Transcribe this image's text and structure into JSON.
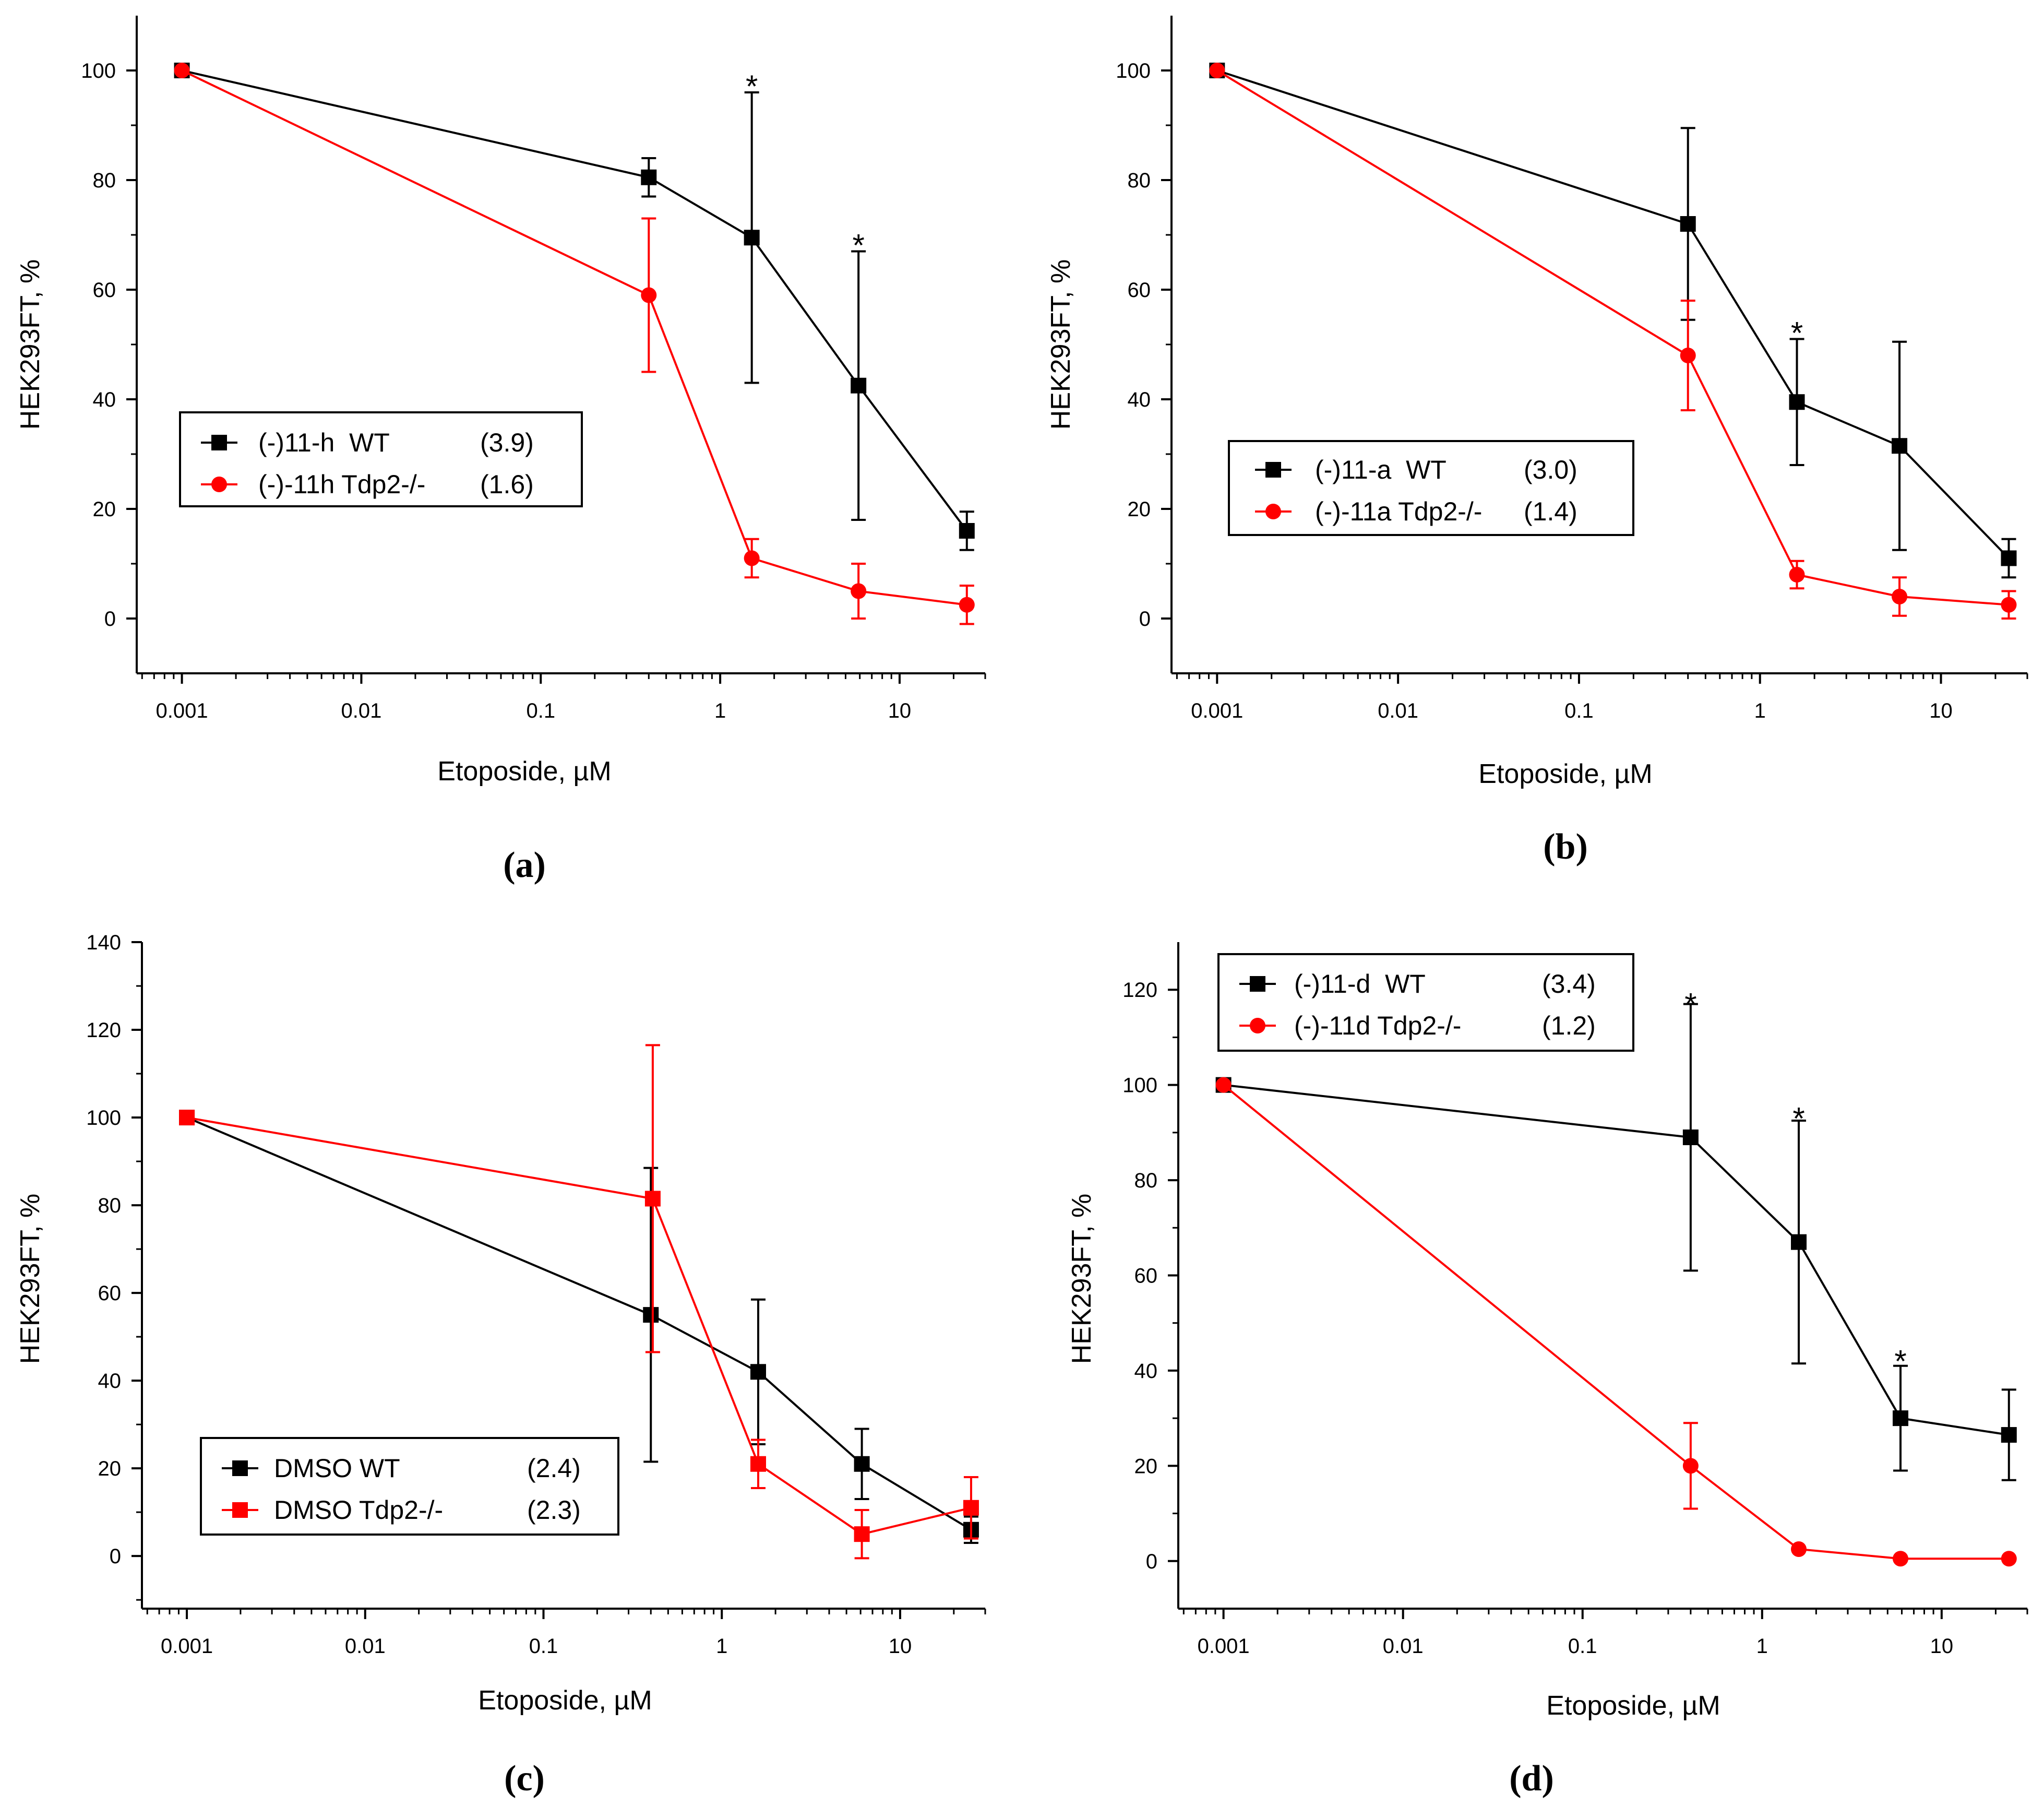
{
  "figure": {
    "panel_captions": [
      "(a)",
      "(b)",
      "(c)",
      "(d)"
    ]
  },
  "chart_data": [
    {
      "type": "line",
      "panel": "(a)",
      "xlabel": "Etoposide, µM",
      "ylabel": "HEK293FT, %",
      "xscale": "log",
      "xlim": [
        0.00056,
        30
      ],
      "ylim": [
        -10,
        110
      ],
      "xticks": [
        0.001,
        0.01,
        0.1,
        1,
        10
      ],
      "xtick_labels": [
        "0.001",
        "0.01",
        "0.1",
        "1",
        "10"
      ],
      "yticks": [
        0,
        20,
        40,
        60,
        80,
        100
      ],
      "ytick_labels": [
        "0",
        "20",
        "40",
        "60",
        "80",
        "100"
      ],
      "legend_position": "middle-left",
      "series": [
        {
          "name": "(-)11-h  WT",
          "value_label": "(3.9)",
          "color": "#000000",
          "marker": "square",
          "x": [
            0.001,
            0.4,
            1.5,
            5.9,
            23.7
          ],
          "y": [
            100,
            80.5,
            69.5,
            42.5,
            16
          ],
          "err": [
            0,
            3.5,
            26.5,
            24.5,
            3.5
          ]
        },
        {
          "name": "(-)-11h Tdp2-/-",
          "value_label": "(1.6)",
          "color": "#ff0000",
          "marker": "circle",
          "x": [
            0.001,
            0.4,
            1.5,
            5.9,
            23.7
          ],
          "y": [
            100,
            59,
            11,
            5,
            2.5
          ],
          "err": [
            0,
            14,
            3.5,
            5,
            3.5
          ]
        }
      ],
      "annotations": [
        {
          "text": "*",
          "x": 1.5,
          "y": 98
        },
        {
          "text": "*",
          "x": 5.9,
          "y": 69
        }
      ]
    },
    {
      "type": "line",
      "panel": "(b)",
      "xlabel": "Etoposide, µM",
      "ylabel": "HEK293FT, %",
      "xscale": "log",
      "xlim": [
        0.00056,
        30
      ],
      "ylim": [
        -10,
        110
      ],
      "xticks": [
        0.001,
        0.01,
        0.1,
        1,
        10
      ],
      "xtick_labels": [
        "0.001",
        "0.01",
        "0.1",
        "1",
        "10"
      ],
      "yticks": [
        0,
        20,
        40,
        60,
        80,
        100
      ],
      "ytick_labels": [
        "0",
        "20",
        "40",
        "60",
        "80",
        "100"
      ],
      "legend_position": "middle-left",
      "series": [
        {
          "name": "(-)11-a  WT",
          "value_label": "(3.0)",
          "color": "#000000",
          "marker": "square",
          "x": [
            0.001,
            0.4,
            1.6,
            5.9,
            23.7
          ],
          "y": [
            100,
            72,
            39.5,
            31.5,
            11
          ],
          "err": [
            0,
            17.5,
            11.5,
            19,
            3.5
          ]
        },
        {
          "name": "(-)-11a Tdp2-/-",
          "value_label": "(1.4)",
          "color": "#ff0000",
          "marker": "circle",
          "x": [
            0.001,
            0.4,
            1.6,
            5.9,
            23.7
          ],
          "y": [
            100,
            48,
            8,
            4,
            2.5
          ],
          "err": [
            0,
            10,
            2.5,
            3.5,
            2.5
          ]
        }
      ],
      "annotations": [
        {
          "text": "*",
          "x": 1.6,
          "y": 53
        }
      ]
    },
    {
      "type": "line",
      "panel": "(c)",
      "xlabel": "Etoposide, µM",
      "ylabel": "HEK293FT, %",
      "xscale": "log",
      "xlim": [
        0.00056,
        30
      ],
      "ylim": [
        -12,
        140
      ],
      "xticks": [
        0.001,
        0.01,
        0.1,
        1,
        10
      ],
      "xtick_labels": [
        "0.001",
        "0.01",
        "0.1",
        "1",
        "10"
      ],
      "yticks": [
        0,
        20,
        40,
        60,
        80,
        100,
        120,
        140
      ],
      "ytick_labels": [
        "0",
        "20",
        "40",
        "60",
        "80",
        "100",
        "120",
        "140"
      ],
      "legend_position": "lower-left",
      "series": [
        {
          "name": "DMSO WT",
          "value_label": "(2.4)",
          "color": "#000000",
          "marker": "square",
          "x": [
            0.001,
            0.4,
            1.6,
            6.1,
            25
          ],
          "y": [
            100,
            55,
            42,
            21,
            6
          ],
          "err": [
            0,
            33.5,
            16.5,
            8,
            3
          ]
        },
        {
          "name": "DMSO Tdp2-/-",
          "value_label": "(2.3)",
          "color": "#ff0000",
          "marker": "square",
          "x": [
            0.001,
            0.41,
            1.6,
            6.1,
            25
          ],
          "y": [
            100,
            81.5,
            21,
            5,
            11
          ],
          "err": [
            0,
            35,
            5.5,
            5.5,
            7
          ]
        }
      ],
      "annotations": []
    },
    {
      "type": "line",
      "panel": "(d)",
      "xlabel": "Etoposide, µM",
      "ylabel": "HEK293FT, %",
      "xscale": "log",
      "xlim": [
        0.00056,
        30
      ],
      "ylim": [
        -10,
        130
      ],
      "xticks": [
        0.001,
        0.01,
        0.1,
        1,
        10
      ],
      "xtick_labels": [
        "0.001",
        "0.01",
        "0.1",
        "1",
        "10"
      ],
      "yticks": [
        0,
        20,
        40,
        60,
        80,
        100,
        120
      ],
      "ytick_labels": [
        "0",
        "20",
        "40",
        "60",
        "80",
        "100",
        "120"
      ],
      "legend_position": "top-left",
      "series": [
        {
          "name": "(-)11-d  WT",
          "value_label": "(3.4)",
          "color": "#000000",
          "marker": "square",
          "x": [
            0.001,
            0.4,
            1.6,
            5.9,
            23.7
          ],
          "y": [
            100,
            89,
            67,
            30,
            26.5
          ],
          "err": [
            0,
            28,
            25.5,
            11,
            9.5
          ]
        },
        {
          "name": "(-)-11d Tdp2-/-",
          "value_label": "(1.2)",
          "color": "#ff0000",
          "marker": "circle",
          "x": [
            0.001,
            0.4,
            1.6,
            5.9,
            23.7
          ],
          "y": [
            100,
            20,
            2.5,
            0.5,
            0.5
          ],
          "err": [
            0,
            9,
            0,
            0,
            0
          ]
        }
      ],
      "annotations": [
        {
          "text": "*",
          "x": 0.4,
          "y": 118
        },
        {
          "text": "*",
          "x": 1.6,
          "y": 94
        },
        {
          "text": "*",
          "x": 5.9,
          "y": 43
        }
      ]
    }
  ]
}
